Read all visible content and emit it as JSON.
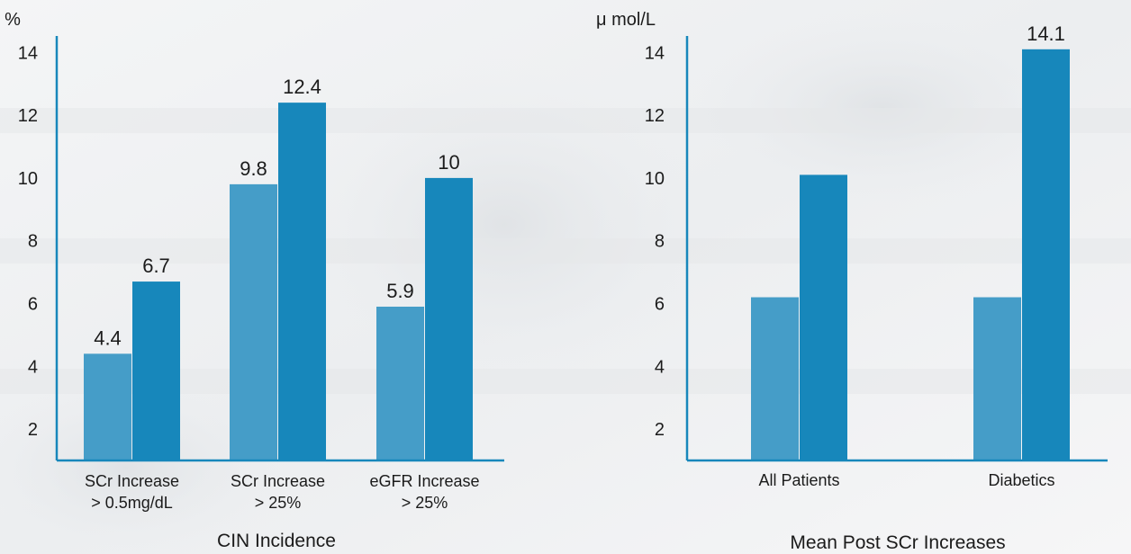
{
  "colors": {
    "series_light": "#459dc8",
    "series_dark": "#1787bb",
    "axis": "#1787bb",
    "text": "#1b1b1b"
  },
  "chart_data": [
    {
      "type": "bar",
      "title": "CIN Incidence",
      "ylabel": "%",
      "ylim": [
        1,
        14.5
      ],
      "yticks": [
        2,
        4,
        6,
        8,
        10,
        12,
        14
      ],
      "grid": false,
      "legend": "none",
      "categories": [
        [
          "SCr Increase",
          "> 0.5mg/dL"
        ],
        [
          "SCr Increase",
          "> 25%"
        ],
        [
          "eGFR Increase",
          "> 25%"
        ]
      ],
      "series": [
        {
          "values": [
            4.4,
            9.8,
            5.9
          ],
          "labels": [
            "4.4",
            "9.8",
            "5.9"
          ]
        },
        {
          "values": [
            6.7,
            12.4,
            10
          ],
          "labels": [
            "6.7",
            "12.4",
            "10"
          ]
        }
      ]
    },
    {
      "type": "bar",
      "title": "Mean Post SCr Increases",
      "ylabel": "μ mol/L",
      "ylim": [
        1,
        14.5
      ],
      "yticks": [
        2,
        4,
        6,
        8,
        10,
        12,
        14
      ],
      "grid": false,
      "legend": "none",
      "categories": [
        [
          "All Patients"
        ],
        [
          "Diabetics"
        ]
      ],
      "series": [
        {
          "values": [
            6.2,
            6.2
          ],
          "labels": [
            "",
            ""
          ]
        },
        {
          "values": [
            10.1,
            14.1
          ],
          "labels": [
            "",
            "14.1"
          ]
        }
      ]
    }
  ]
}
